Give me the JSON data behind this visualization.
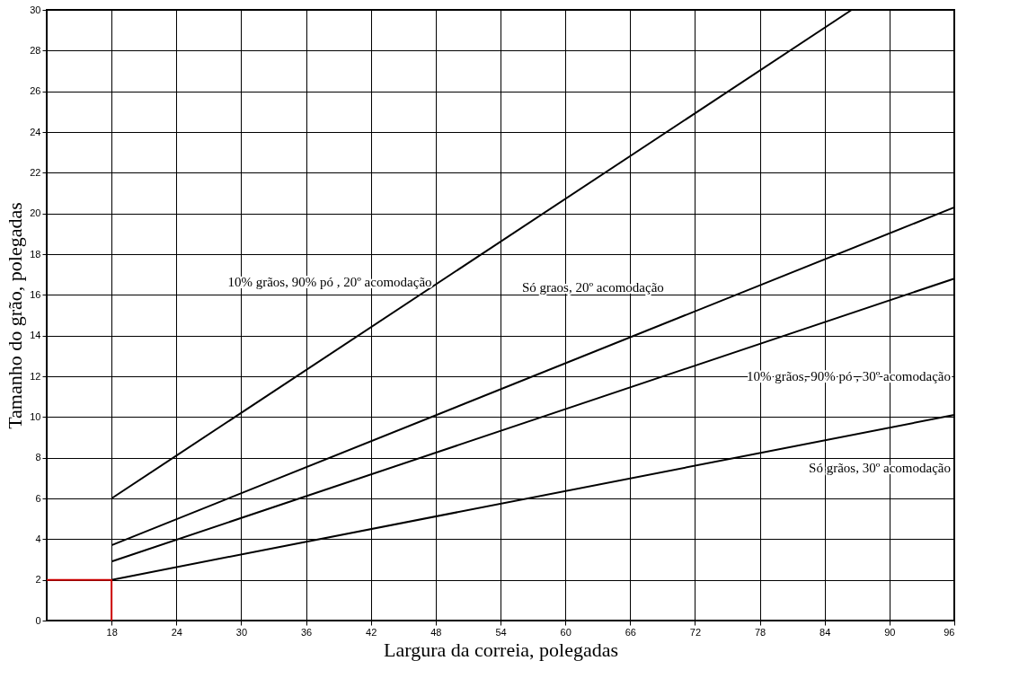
{
  "chart_data": {
    "type": "line",
    "xlabel": "Largura da correia, polegadas",
    "ylabel": "Tamanho do grão, polegadas",
    "xlim": [
      12,
      96
    ],
    "xticks": [
      18,
      24,
      30,
      36,
      42,
      48,
      54,
      60,
      66,
      72,
      78,
      84,
      90,
      96
    ],
    "ylim": [
      0,
      30
    ],
    "yticks": [
      0,
      2,
      4,
      6,
      8,
      10,
      12,
      14,
      16,
      18,
      20,
      22,
      24,
      26,
      28,
      30
    ],
    "grid": true,
    "line_style": "solid",
    "series": [
      {
        "name": "10% grãos, 90% pó , 20º acomodação",
        "color": "#000000",
        "x": [
          18,
          86.5
        ],
        "values": [
          6,
          30
        ]
      },
      {
        "name": "Só graos, 20º acomodação",
        "color": "#000000",
        "x": [
          18,
          96
        ],
        "values": [
          3.7,
          20.3
        ]
      },
      {
        "name": "10% grãos, 90% pó , 30º acomodação",
        "color": "#000000",
        "x": [
          18,
          96
        ],
        "values": [
          2.9,
          16.8
        ]
      },
      {
        "name": "Só grãos, 30º acomodação",
        "color": "#000000",
        "x": [
          18,
          96
        ],
        "values": [
          2,
          10.1
        ]
      },
      {
        "color": "#cc0000",
        "x": [
          12,
          18,
          18
        ],
        "values": [
          2,
          2,
          0
        ]
      }
    ]
  }
}
